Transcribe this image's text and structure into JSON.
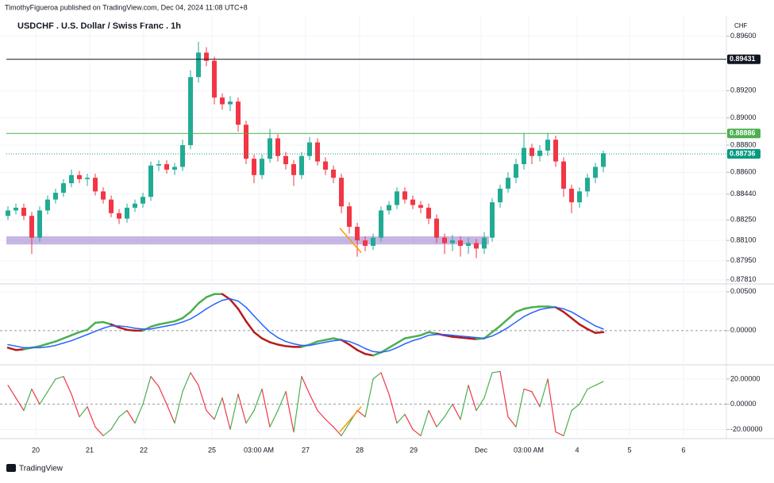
{
  "header": "TimothyFigueroa published on TradingView.com, Dec 04, 2024 11:08 UTC+8",
  "footer": "TradingView",
  "chart_data": [
    {
      "type": "candlestick",
      "title": "USDCHF . U.S. Dollar / Swiss Franc . 1h",
      "axis_unit": "CHF",
      "up_color": "#22ab94",
      "down_color": "#f23645",
      "ylim": [
        0.8778,
        0.8975
      ],
      "yticks": [
        {
          "value": 0.896,
          "label": "0.89600"
        },
        {
          "value": 0.892,
          "label": "0.89200"
        },
        {
          "value": 0.89,
          "label": "0.89000"
        },
        {
          "value": 0.888,
          "label": "0.88800"
        },
        {
          "value": 0.886,
          "label": "0.88600"
        },
        {
          "value": 0.8844,
          "label": "0.88440"
        },
        {
          "value": 0.8825,
          "label": "0.88250"
        },
        {
          "value": 0.881,
          "label": "0.88100"
        },
        {
          "value": 0.8795,
          "label": "0.87950"
        },
        {
          "value": 0.8781,
          "label": "0.87810"
        }
      ],
      "x_labels": [
        "20",
        "21",
        "22",
        "25",
        "03:00 AM",
        "27",
        "28",
        "29",
        "Dec",
        "03:00 AM",
        "4",
        "5",
        "6"
      ],
      "levels": [
        {
          "value": 0.89431,
          "color": "#131722",
          "style": "solid"
        },
        {
          "value": 0.88886,
          "color": "#4caf50",
          "style": "solid"
        },
        {
          "value": 0.88736,
          "color": "#089981",
          "style": "dotted"
        }
      ],
      "zone": {
        "range": [
          0.8807,
          0.8813
        ],
        "color": "#b39ddb"
      },
      "trendline": {
        "values": [
          0.8819,
          0.8801
        ],
        "color": "#ff9800"
      },
      "ohlc": [
        [
          0.8828,
          0.8835,
          0.8825,
          0.8832
        ],
        [
          0.8832,
          0.8837,
          0.8829,
          0.8834
        ],
        [
          0.8834,
          0.8837,
          0.8825,
          0.8828
        ],
        [
          0.8828,
          0.8831,
          0.88,
          0.8812
        ],
        [
          0.8812,
          0.8835,
          0.8809,
          0.8832
        ],
        [
          0.8832,
          0.8843,
          0.8829,
          0.884
        ],
        [
          0.884,
          0.8848,
          0.8837,
          0.8845
        ],
        [
          0.8845,
          0.8855,
          0.8842,
          0.8852
        ],
        [
          0.8852,
          0.8862,
          0.8849,
          0.8858
        ],
        [
          0.8858,
          0.8861,
          0.8852,
          0.8855
        ],
        [
          0.8855,
          0.8859,
          0.885,
          0.8856
        ],
        [
          0.8856,
          0.8859,
          0.8843,
          0.8846
        ],
        [
          0.8846,
          0.8849,
          0.8837,
          0.884
        ],
        [
          0.884,
          0.8843,
          0.8827,
          0.883
        ],
        [
          0.883,
          0.8833,
          0.8822,
          0.8826
        ],
        [
          0.8826,
          0.8837,
          0.8823,
          0.8834
        ],
        [
          0.8834,
          0.884,
          0.8831,
          0.8837
        ],
        [
          0.8837,
          0.8845,
          0.8834,
          0.8842
        ],
        [
          0.8842,
          0.8868,
          0.8839,
          0.8865
        ],
        [
          0.8865,
          0.8869,
          0.8861,
          0.8866
        ],
        [
          0.8866,
          0.8869,
          0.8859,
          0.8862
        ],
        [
          0.8862,
          0.8867,
          0.8858,
          0.8864
        ],
        [
          0.8864,
          0.8884,
          0.8861,
          0.888
        ],
        [
          0.888,
          0.8935,
          0.8877,
          0.893
        ],
        [
          0.893,
          0.8956,
          0.8926,
          0.8948
        ],
        [
          0.8948,
          0.8952,
          0.8938,
          0.8942
        ],
        [
          0.8942,
          0.8945,
          0.891,
          0.8915
        ],
        [
          0.8915,
          0.8918,
          0.8906,
          0.891
        ],
        [
          0.891,
          0.8916,
          0.8905,
          0.8912
        ],
        [
          0.8912,
          0.8915,
          0.889,
          0.8895
        ],
        [
          0.8895,
          0.8898,
          0.8866,
          0.887
        ],
        [
          0.887,
          0.8873,
          0.8852,
          0.8858
        ],
        [
          0.8858,
          0.8873,
          0.8855,
          0.887
        ],
        [
          0.887,
          0.8892,
          0.8867,
          0.8885
        ],
        [
          0.8885,
          0.8888,
          0.8868,
          0.8872
        ],
        [
          0.8872,
          0.8875,
          0.8862,
          0.8866
        ],
        [
          0.8866,
          0.8869,
          0.885,
          0.8858
        ],
        [
          0.8858,
          0.8875,
          0.8855,
          0.8872
        ],
        [
          0.8872,
          0.8886,
          0.8869,
          0.8882
        ],
        [
          0.8882,
          0.8885,
          0.8865,
          0.8868
        ],
        [
          0.8868,
          0.8871,
          0.8858,
          0.8862
        ],
        [
          0.8862,
          0.8865,
          0.8852,
          0.8856
        ],
        [
          0.8856,
          0.8859,
          0.883,
          0.8835
        ],
        [
          0.8835,
          0.8838,
          0.8815,
          0.882
        ],
        [
          0.882,
          0.8823,
          0.8798,
          0.881
        ],
        [
          0.881,
          0.8813,
          0.8802,
          0.8806
        ],
        [
          0.8806,
          0.8815,
          0.8803,
          0.8812
        ],
        [
          0.8812,
          0.8835,
          0.8809,
          0.8832
        ],
        [
          0.8832,
          0.8839,
          0.8829,
          0.8836
        ],
        [
          0.8836,
          0.8849,
          0.8833,
          0.8846
        ],
        [
          0.8846,
          0.8849,
          0.8837,
          0.884
        ],
        [
          0.884,
          0.8843,
          0.8833,
          0.8836
        ],
        [
          0.8836,
          0.8839,
          0.883,
          0.8834
        ],
        [
          0.8834,
          0.8837,
          0.8822,
          0.8826
        ],
        [
          0.8826,
          0.8829,
          0.8808,
          0.8812
        ],
        [
          0.8812,
          0.8815,
          0.88,
          0.8808
        ],
        [
          0.8808,
          0.8814,
          0.8802,
          0.881
        ],
        [
          0.881,
          0.8813,
          0.8798,
          0.8806
        ],
        [
          0.8806,
          0.8812,
          0.88,
          0.8808
        ],
        [
          0.8808,
          0.8811,
          0.8797,
          0.8804
        ],
        [
          0.8804,
          0.8816,
          0.88,
          0.8812
        ],
        [
          0.8812,
          0.8841,
          0.8809,
          0.8838
        ],
        [
          0.8838,
          0.8851,
          0.8834,
          0.8848
        ],
        [
          0.8848,
          0.886,
          0.8845,
          0.8856
        ],
        [
          0.8856,
          0.887,
          0.8852,
          0.8866
        ],
        [
          0.8866,
          0.8889,
          0.8862,
          0.8878
        ],
        [
          0.8878,
          0.8881,
          0.8866,
          0.8872
        ],
        [
          0.8872,
          0.888,
          0.8868,
          0.8876
        ],
        [
          0.8876,
          0.8889,
          0.8872,
          0.8884
        ],
        [
          0.8884,
          0.8887,
          0.8864,
          0.8868
        ],
        [
          0.8868,
          0.8871,
          0.8842,
          0.8848
        ],
        [
          0.8848,
          0.8851,
          0.883,
          0.8838
        ],
        [
          0.8838,
          0.8849,
          0.8834,
          0.8846
        ],
        [
          0.8846,
          0.8859,
          0.8842,
          0.8856
        ],
        [
          0.8856,
          0.8867,
          0.8852,
          0.8864
        ],
        [
          0.8864,
          0.8876,
          0.886,
          0.8874
        ]
      ]
    },
    {
      "type": "line",
      "ylim": [
        -0.0042,
        0.0058
      ],
      "yticks": [
        {
          "value": 0.005,
          "label": "0.00500"
        },
        {
          "value": 0,
          "label": "0.00000"
        }
      ],
      "series": [
        {
          "color": "#4caf50",
          "down_color": "#b71c1c",
          "width": 2.5,
          "values": [
            -0.0022,
            -0.0025,
            -0.0024,
            -0.0022,
            -0.002,
            -0.0017,
            -0.0014,
            -0.001,
            -0.0006,
            -0.0002,
            0.0001,
            0.001,
            0.0011,
            0.0008,
            0.0004,
            0.0001,
            0,
            0,
            0.0005,
            0.0008,
            0.001,
            0.0012,
            0.0016,
            0.0024,
            0.0035,
            0.0043,
            0.0047,
            0.0047,
            0.004,
            0.0028,
            0.0012,
            -0.0002,
            -0.001,
            -0.0015,
            -0.0018,
            -0.002,
            -0.0021,
            -0.0021,
            -0.0018,
            -0.0014,
            -0.0012,
            -0.001,
            -0.0012,
            -0.0018,
            -0.0025,
            -0.003,
            -0.0032,
            -0.0028,
            -0.0022,
            -0.0016,
            -0.001,
            -0.0008,
            -0.0006,
            -0.0002,
            -0.0004,
            -0.0006,
            -0.0008,
            -0.0009,
            -0.001,
            -0.0011,
            -0.001,
            -0.0002,
            0.0006,
            0.0015,
            0.0024,
            0.0028,
            0.003,
            0.0031,
            0.0031,
            0.003,
            0.0024,
            0.0016,
            0.0008,
            0.0002,
            -0.0003,
            -0.0002
          ]
        },
        {
          "color": "#2962ff",
          "width": 1.5,
          "values": [
            -0.0018,
            -0.002,
            -0.0022,
            -0.0022,
            -0.0022,
            -0.0021,
            -0.0019,
            -0.0016,
            -0.0013,
            -0.0009,
            -0.0005,
            -0.0001,
            0.0003,
            0.0006,
            0.0006,
            0.0005,
            0.0003,
            0.0002,
            0.0002,
            0.0004,
            0.0006,
            0.0008,
            0.0011,
            0.0015,
            0.0021,
            0.0028,
            0.0034,
            0.0039,
            0.0041,
            0.0038,
            0.003,
            0.0019,
            0.0008,
            -0.0002,
            -0.0009,
            -0.0014,
            -0.0017,
            -0.0019,
            -0.0019,
            -0.0017,
            -0.0015,
            -0.0013,
            -0.0012,
            -0.0014,
            -0.0018,
            -0.0023,
            -0.0027,
            -0.0028,
            -0.0026,
            -0.0022,
            -0.0017,
            -0.0013,
            -0.001,
            -0.0006,
            -0.0005,
            -0.0005,
            -0.0006,
            -0.0007,
            -0.0008,
            -0.0009,
            -0.001,
            -0.0007,
            -0.0002,
            0.0004,
            0.0011,
            0.0018,
            0.0023,
            0.0027,
            0.0029,
            0.003,
            0.0028,
            0.0024,
            0.0018,
            0.0012,
            0.0006,
            0.0002
          ]
        }
      ]
    },
    {
      "type": "line",
      "ylim": [
        -26,
        30
      ],
      "yticks": [
        {
          "value": 20,
          "label": "20.00000"
        },
        {
          "value": 0,
          "label": "0.00000"
        },
        {
          "value": -20,
          "label": "-20.00000"
        }
      ],
      "trendline": {
        "values": [
          -22,
          -2
        ],
        "color": "#ff9800"
      },
      "series": [
        {
          "color": "#4caf50",
          "down_color": "#f23645",
          "width": 1.2,
          "values": [
            15,
            5,
            -5,
            12,
            0,
            10,
            20,
            22,
            8,
            -10,
            -2,
            -18,
            -25,
            -20,
            -10,
            -5,
            -15,
            0,
            22,
            14,
            0,
            -15,
            10,
            25,
            15,
            -5,
            -12,
            5,
            -20,
            8,
            -15,
            -5,
            12,
            -18,
            -5,
            10,
            -22,
            22,
            8,
            -5,
            -12,
            -18,
            -25,
            -15,
            -5,
            -10,
            20,
            25,
            8,
            -15,
            -8,
            -20,
            -25,
            -5,
            -18,
            -10,
            0,
            -12,
            15,
            -5,
            5,
            25,
            26,
            -10,
            -18,
            12,
            10,
            -2,
            20,
            -22,
            -25,
            -5,
            0,
            12,
            15,
            18
          ]
        }
      ]
    }
  ]
}
